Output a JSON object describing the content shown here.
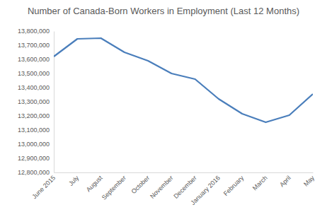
{
  "chart_data": {
    "type": "line",
    "title": "Number of Canada-Born Workers in Employment (Last 12 Months)",
    "categories": [
      "June 2015",
      "July",
      "August",
      "September",
      "October",
      "November",
      "December",
      "January 2016",
      "February",
      "March",
      "April",
      "May"
    ],
    "values": [
      13620000,
      13745000,
      13750000,
      13650000,
      13590000,
      13500000,
      13460000,
      13320000,
      13215000,
      13155000,
      13205000,
      13355000
    ],
    "color": "#4a7ebb",
    "ylim": [
      12800000,
      13800000
    ],
    "yticks": [
      {
        "value": 12800000,
        "label": "12,800,000"
      },
      {
        "value": 12900000,
        "label": "12,900,000"
      },
      {
        "value": 13000000,
        "label": "13,000,000"
      },
      {
        "value": 13100000,
        "label": "13,100,000"
      },
      {
        "value": 13200000,
        "label": "13,200,000"
      },
      {
        "value": 13300000,
        "label": "13,300,000"
      },
      {
        "value": 13400000,
        "label": "13,400,000"
      },
      {
        "value": 13500000,
        "label": "13,500,000"
      },
      {
        "value": 13600000,
        "label": "13,600,000"
      },
      {
        "value": 13700000,
        "label": "13,700,000"
      },
      {
        "value": 13800000,
        "label": "13,800,000"
      }
    ],
    "grid": false
  }
}
